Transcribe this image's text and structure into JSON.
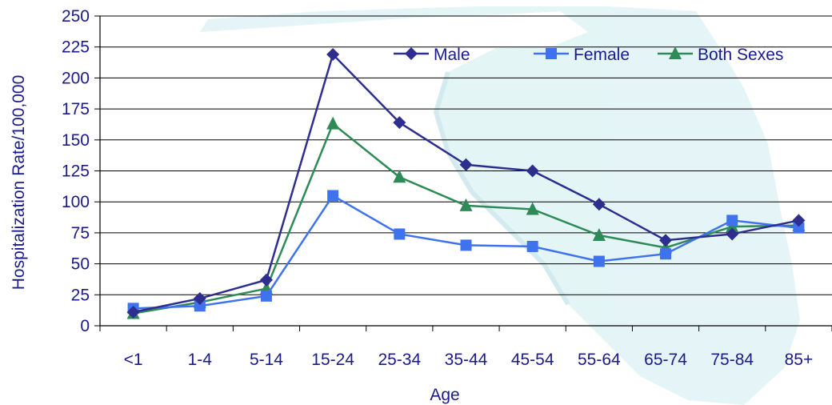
{
  "chart_data": {
    "type": "line",
    "title": "",
    "xlabel": "Age",
    "ylabel": "Hospitalization Rate/100,000",
    "categories": [
      "<1",
      "1-4",
      "5-14",
      "15-24",
      "25-34",
      "35-44",
      "45-54",
      "55-64",
      "65-74",
      "75-84",
      "85+"
    ],
    "ylim": [
      0,
      250
    ],
    "yticks": [
      0,
      25,
      50,
      75,
      100,
      125,
      150,
      175,
      200,
      225,
      250
    ],
    "grid": true,
    "legend_position": "top-right",
    "series": [
      {
        "name": "Male",
        "marker": "diamond",
        "color": "#2e2e8f",
        "values": [
          11,
          22,
          37,
          219,
          164,
          130,
          125,
          98,
          69,
          74,
          85
        ]
      },
      {
        "name": "Female",
        "marker": "square",
        "color": "#3f73ee",
        "values": [
          14,
          16,
          24,
          105,
          74,
          65,
          64,
          52,
          58,
          85,
          79
        ]
      },
      {
        "name": "Both Sexes",
        "marker": "triangle",
        "color": "#2e8b57",
        "values": [
          10,
          19,
          30,
          163,
          120,
          97,
          94,
          73,
          63,
          80,
          81
        ]
      }
    ]
  }
}
